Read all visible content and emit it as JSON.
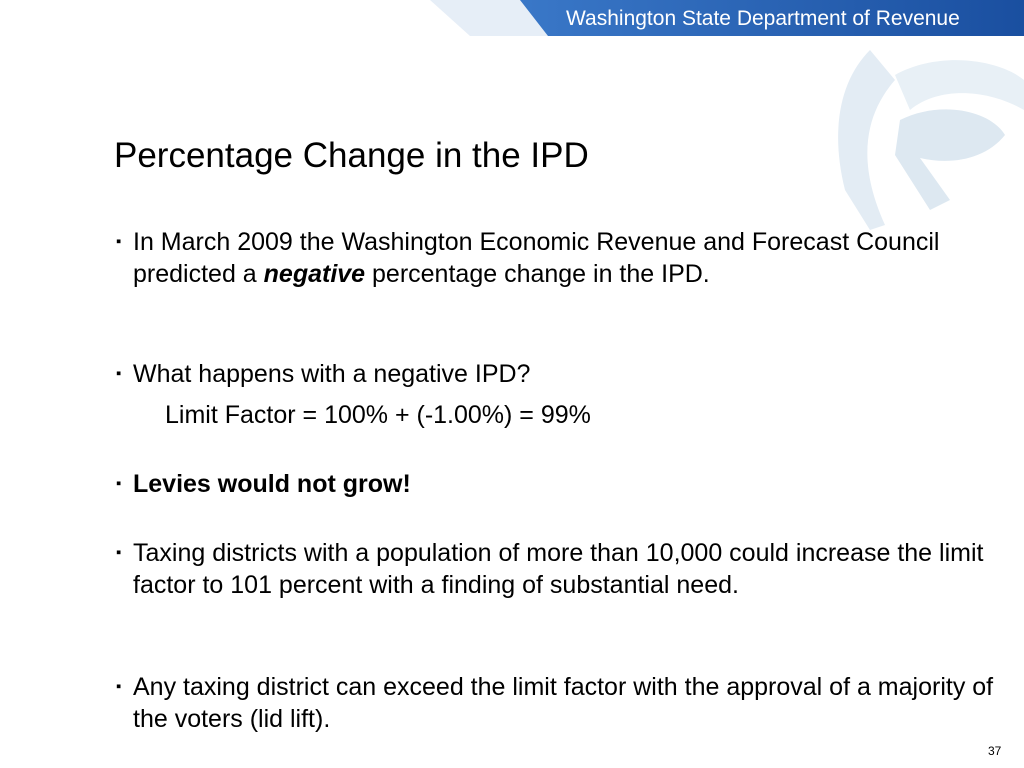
{
  "header": {
    "org_name": "Washington State Department of Revenue",
    "colors": {
      "band_dark": "#1a4fa0",
      "band_light": "#3a78c8",
      "logo_tint": "#dfe9f2"
    }
  },
  "slide": {
    "title": "Percentage Change in the IPD",
    "bullets": [
      {
        "before": "In March 2009 the Washington Economic Revenue and Forecast Council predicted a ",
        "emphasis": "negative",
        "after": " percentage change in the IPD."
      },
      {
        "text": "What happens with a negative IPD?"
      },
      {
        "text": "Levies would not grow!"
      },
      {
        "text": "Taxing districts with a population of more than 10,000 could increase the limit factor to 101 percent with a finding of substantial need."
      },
      {
        "text": "Any taxing district can exceed the limit factor with the approval of a majority of the voters (lid lift)."
      }
    ],
    "sub_line": "Limit Factor =  100% + (-1.00%) = 99%",
    "bullet_marker": "▪",
    "page_number": "37"
  }
}
